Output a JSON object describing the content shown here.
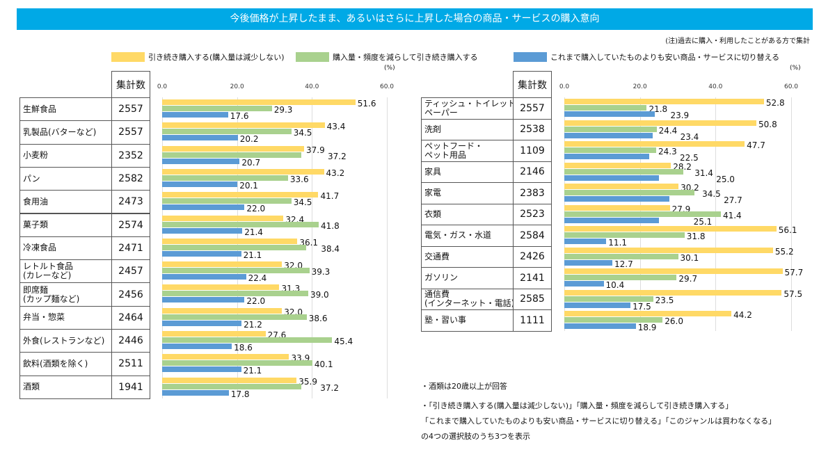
{
  "title": "今後価格が上昇したまま、あるいはさらに上昇した場合の商品・サービスの購入意向",
  "note": "(注)過去に購入・利用したことがある方で集計",
  "unit": "(%)",
  "count_header": "集計数",
  "chart_data": [
    {
      "type": "bar",
      "orientation": "horizontal",
      "xlim": [
        0,
        60
      ],
      "ticks": [
        "0.0",
        "20.0",
        "40.0",
        "60.0"
      ],
      "grid": true,
      "series": [
        {
          "name": "引き続き購入する(購入量は減少しない)",
          "color": "#ffd966"
        },
        {
          "name": "購入量・頻度を減らして引き続き購入する",
          "color": "#a9d18e"
        },
        {
          "name": "これまで購入していたものよりも安い商品・サービスに切り替える",
          "color": "#5b9bd5"
        }
      ],
      "rows": [
        {
          "label": "生鮮食品",
          "count": "2557",
          "values": [
            51.6,
            29.3,
            17.6
          ]
        },
        {
          "label": "乳製品(バターなど)",
          "count": "2557",
          "values": [
            43.4,
            34.5,
            20.2
          ]
        },
        {
          "label": "小麦粉",
          "count": "2352",
          "values": [
            37.9,
            37.2,
            20.7
          ]
        },
        {
          "label": "パン",
          "count": "2582",
          "values": [
            43.2,
            33.6,
            20.1
          ]
        },
        {
          "label": "食用油",
          "count": "2473",
          "values": [
            41.7,
            34.5,
            22.0
          ]
        },
        {
          "label": "菓子類",
          "count": "2574",
          "values": [
            32.4,
            41.8,
            21.4
          ]
        },
        {
          "label": "冷凍食品",
          "count": "2471",
          "values": [
            36.1,
            38.4,
            21.1
          ]
        },
        {
          "label": "レトルト食品\n(カレーなど)",
          "count": "2457",
          "values": [
            32.0,
            39.3,
            22.4
          ]
        },
        {
          "label": "即席麺\n(カップ麺など)",
          "count": "2456",
          "values": [
            31.3,
            39.0,
            22.0
          ]
        },
        {
          "label": "弁当・惣菜",
          "count": "2464",
          "values": [
            32.0,
            38.6,
            21.2
          ]
        },
        {
          "label": "外食(レストランなど)",
          "count": "2446",
          "values": [
            27.6,
            45.4,
            18.6
          ]
        },
        {
          "label": "飲料(酒類を除く)",
          "count": "2511",
          "values": [
            33.9,
            40.1,
            21.1
          ]
        },
        {
          "label": "酒類",
          "count": "1941",
          "values": [
            35.9,
            37.2,
            17.8
          ]
        }
      ]
    },
    {
      "type": "bar",
      "orientation": "horizontal",
      "xlim": [
        0,
        60
      ],
      "ticks": [
        "0.0",
        "20.0",
        "40.0",
        "60.0"
      ],
      "grid": true,
      "rows": [
        {
          "label": "ティッシュ・トイレット\nペーパー",
          "count": "2557",
          "values": [
            52.8,
            21.8,
            23.9
          ]
        },
        {
          "label": "洗剤",
          "count": "2538",
          "values": [
            50.8,
            24.4,
            23.4
          ]
        },
        {
          "label": "ペットフード・\nペット用品",
          "count": "1109",
          "values": [
            47.7,
            24.3,
            22.5
          ]
        },
        {
          "label": "家具",
          "count": "2146",
          "values": [
            28.2,
            31.4,
            25.0
          ]
        },
        {
          "label": "家電",
          "count": "2383",
          "values": [
            30.2,
            34.5,
            27.7
          ]
        },
        {
          "label": "衣類",
          "count": "2523",
          "values": [
            27.9,
            41.4,
            25.1
          ]
        },
        {
          "label": "電気・ガス・水道",
          "count": "2584",
          "values": [
            56.1,
            31.8,
            11.1
          ]
        },
        {
          "label": "交通費",
          "count": "2426",
          "values": [
            55.2,
            30.1,
            12.7
          ]
        },
        {
          "label": "ガソリン",
          "count": "2141",
          "values": [
            57.7,
            29.7,
            10.4
          ]
        },
        {
          "label": "通信費\n(インターネット・電話)",
          "count": "2585",
          "values": [
            57.5,
            23.5,
            17.5
          ]
        },
        {
          "label": "塾・習い事",
          "count": "1111",
          "values": [
            44.2,
            26.0,
            18.9
          ]
        }
      ]
    }
  ],
  "footnotes": [
    "・酒類は20歳以上が回答",
    "・「引き続き購入する(購入量は減少しない)」「購入量・頻度を減らして引き続き購入する」",
    "「これまで購入していたものよりも安い商品・サービスに切り替える」「このジャンルは買わなくなる」",
    "の4つの選択肢のうち3つを表示"
  ]
}
